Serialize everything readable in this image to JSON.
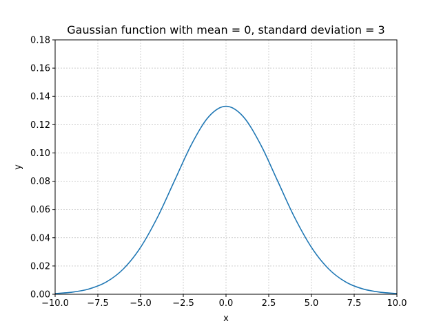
{
  "chart_data": {
    "type": "line",
    "title": "Gaussian function with mean = 0, standard deviation = 3",
    "xlabel": "x",
    "ylabel": "y",
    "xlim": [
      -10,
      10
    ],
    "ylim": [
      0,
      0.18
    ],
    "x_ticks": [
      -10,
      -7.5,
      -5,
      -2.5,
      0,
      2.5,
      5,
      7.5,
      10
    ],
    "x_tick_labels": [
      "−10.0",
      "−7.5",
      "−5.0",
      "−2.5",
      "0.0",
      "2.5",
      "5.0",
      "7.5",
      "10.0"
    ],
    "y_ticks": [
      0,
      0.02,
      0.04,
      0.06,
      0.08,
      0.1,
      0.12,
      0.14,
      0.16,
      0.18
    ],
    "y_tick_labels": [
      "0.00",
      "0.02",
      "0.04",
      "0.06",
      "0.08",
      "0.10",
      "0.12",
      "0.14",
      "0.16",
      "0.18"
    ],
    "grid": true,
    "series": [
      {
        "color": "#1f77b4",
        "x": [
          -10,
          -9,
          -8,
          -7,
          -6,
          -5,
          -4,
          -3,
          -2,
          -1,
          0,
          1,
          2,
          3,
          4,
          5,
          6,
          7,
          8,
          9,
          10
        ],
        "y": [
          0.0005,
          0.0015,
          0.0038,
          0.0087,
          0.018,
          0.0332,
          0.0547,
          0.0807,
          0.1065,
          0.1258,
          0.133,
          0.1258,
          0.1065,
          0.0807,
          0.0547,
          0.0332,
          0.018,
          0.0087,
          0.0038,
          0.0015,
          0.0005
        ]
      }
    ]
  }
}
